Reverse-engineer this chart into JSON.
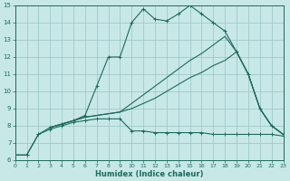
{
  "xlabel": "Humidex (Indice chaleur)",
  "bg_color": "#c8e8e8",
  "grid_color": "#a0c8c8",
  "line_color": "#1a6b5a",
  "xlim": [
    0,
    23
  ],
  "ylim": [
    6,
    15
  ],
  "xticks": [
    0,
    1,
    2,
    3,
    4,
    5,
    6,
    7,
    8,
    9,
    10,
    11,
    12,
    13,
    14,
    15,
    16,
    17,
    18,
    19,
    20,
    21,
    22,
    23
  ],
  "yticks": [
    6,
    7,
    8,
    9,
    10,
    11,
    12,
    13,
    14,
    15
  ],
  "curve_peaked_x": [
    0,
    1,
    2,
    3,
    4,
    5,
    6,
    7,
    8,
    9,
    10,
    11,
    12,
    13,
    14,
    15,
    16,
    17,
    18,
    19,
    20,
    21,
    22,
    23
  ],
  "curve_peaked_y": [
    6.3,
    6.3,
    7.5,
    7.9,
    8.1,
    8.3,
    8.6,
    10.3,
    12.0,
    12.0,
    14.0,
    14.8,
    14.2,
    14.1,
    14.5,
    15.0,
    14.5,
    14.0,
    13.5,
    12.3,
    11.0,
    9.0,
    8.0,
    7.5
  ],
  "curve_flat_x": [
    0,
    1,
    2,
    3,
    4,
    5,
    6,
    7,
    8,
    9,
    10,
    11,
    12,
    13,
    14,
    15,
    16,
    17,
    18,
    19,
    20,
    21,
    22,
    23
  ],
  "curve_flat_y": [
    6.3,
    6.3,
    7.5,
    7.8,
    8.0,
    8.2,
    8.3,
    8.4,
    8.4,
    8.4,
    7.7,
    7.7,
    7.6,
    7.6,
    7.6,
    7.6,
    7.6,
    7.5,
    7.5,
    7.5,
    7.5,
    7.5,
    7.5,
    7.4
  ],
  "curve_diag1_x": [
    3,
    4,
    5,
    6,
    7,
    8,
    9,
    10,
    11,
    12,
    13,
    14,
    15,
    16,
    17,
    18,
    19,
    20,
    21,
    22,
    23
  ],
  "curve_diag1_y": [
    7.9,
    8.1,
    8.3,
    8.5,
    8.6,
    8.7,
    8.8,
    9.3,
    9.8,
    10.3,
    10.8,
    11.3,
    11.8,
    12.2,
    12.7,
    13.2,
    12.3,
    11.0,
    9.0,
    8.0,
    7.5
  ],
  "curve_diag2_x": [
    3,
    4,
    5,
    6,
    7,
    8,
    9,
    10,
    11,
    12,
    13,
    14,
    15,
    16,
    17,
    18,
    19,
    20,
    21,
    22,
    23
  ],
  "curve_diag2_y": [
    7.9,
    8.1,
    8.3,
    8.5,
    8.6,
    8.7,
    8.8,
    9.0,
    9.3,
    9.6,
    10.0,
    10.4,
    10.8,
    11.1,
    11.5,
    11.8,
    12.3,
    11.0,
    9.0,
    8.0,
    7.5
  ]
}
